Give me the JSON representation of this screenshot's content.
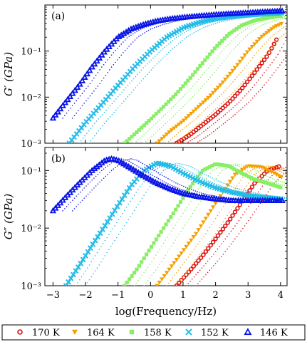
{
  "chart_data": [
    {
      "type": "scatter",
      "panel_label": "(a)",
      "ylabel": "G′ (GPa)",
      "xlabel": "",
      "xlim": [
        -3.25,
        4.2
      ],
      "ylim_log10": [
        -3,
        0
      ],
      "x_ticks": [
        -3,
        -2,
        -1,
        0,
        1,
        2,
        3,
        4
      ],
      "x_tick_labels_shown": false,
      "y_ticks": [
        {
          "exp": -3,
          "label": "10⁻³"
        },
        {
          "exp": -2,
          "label": "10⁻²"
        },
        {
          "exp": -1,
          "label": "10⁻¹"
        }
      ],
      "annotation": "",
      "series_note": "Each highlighted temperature has neighbouring unlabelled isotherms drawn with small dots in the same hue; values below are the highlighted (legend) isotherms.",
      "series": [
        {
          "name": "170 K",
          "color": "#dd1111",
          "marker": "circle",
          "x": [
            0.8,
            1.2,
            1.6,
            2.0,
            2.4,
            2.8,
            3.2,
            3.6,
            3.9
          ],
          "y": [
            0.001,
            0.0015,
            0.0025,
            0.0042,
            0.0075,
            0.015,
            0.034,
            0.08,
            0.19
          ]
        },
        {
          "name": "164 K",
          "color": "#f5a000",
          "marker": "triangle-down",
          "x": [
            0.2,
            0.6,
            1.0,
            1.4,
            1.8,
            2.2,
            2.6,
            3.0,
            3.4,
            3.8,
            4.05
          ],
          "y": [
            0.001,
            0.0018,
            0.003,
            0.0055,
            0.01,
            0.02,
            0.043,
            0.1,
            0.2,
            0.33,
            0.4
          ]
        },
        {
          "name": "158 K",
          "color": "#88ee66",
          "marker": "square",
          "x": [
            -0.8,
            -0.4,
            0.0,
            0.4,
            0.8,
            1.2,
            1.6,
            2.0,
            2.4,
            2.8,
            3.2,
            3.6,
            4.05
          ],
          "y": [
            0.001,
            0.0018,
            0.0033,
            0.0062,
            0.012,
            0.025,
            0.055,
            0.12,
            0.23,
            0.36,
            0.46,
            0.53,
            0.58
          ]
        },
        {
          "name": "152 K",
          "color": "#22bbe8",
          "marker": "x",
          "x": [
            -2.5,
            -2.0,
            -1.5,
            -1.0,
            -0.5,
            0.0,
            0.5,
            1.0,
            1.5,
            2.0,
            2.5,
            3.0,
            3.5,
            4.05
          ],
          "y": [
            0.001,
            0.0028,
            0.007,
            0.018,
            0.045,
            0.1,
            0.2,
            0.32,
            0.42,
            0.5,
            0.56,
            0.6,
            0.64,
            0.67
          ]
        },
        {
          "name": "146 K",
          "color": "#0a14e6",
          "marker": "triangle-up",
          "x": [
            -3.0,
            -2.6,
            -2.2,
            -1.8,
            -1.4,
            -1.0,
            -0.6,
            -0.2,
            0.2,
            0.6,
            1.0,
            1.5,
            2.0,
            2.5,
            3.0,
            3.5,
            4.05
          ],
          "y": [
            0.0035,
            0.008,
            0.018,
            0.045,
            0.1,
            0.2,
            0.3,
            0.38,
            0.45,
            0.5,
            0.54,
            0.58,
            0.62,
            0.65,
            0.68,
            0.71,
            0.74
          ]
        }
      ]
    },
    {
      "type": "scatter",
      "panel_label": "(b)",
      "ylabel": "G″ (GPa)",
      "xlabel": "log(Frequency/Hz)",
      "xlim": [
        -3.25,
        4.2
      ],
      "ylim_log10": [
        -3,
        -0.6
      ],
      "x_ticks": [
        -3,
        -2,
        -1,
        0,
        1,
        2,
        3,
        4
      ],
      "x_tick_labels_shown": true,
      "y_ticks": [
        {
          "exp": -3,
          "label": "10⁻³"
        },
        {
          "exp": -2,
          "label": "10⁻²"
        },
        {
          "exp": -1,
          "label": "10⁻¹"
        }
      ],
      "series": [
        {
          "name": "170 K",
          "color": "#dd1111",
          "marker": "circle",
          "x": [
            0.8,
            1.2,
            1.6,
            2.0,
            2.4,
            2.8,
            3.2,
            3.6,
            4.0
          ],
          "y": [
            0.001,
            0.0018,
            0.0033,
            0.0065,
            0.013,
            0.028,
            0.06,
            0.1,
            0.12
          ]
        },
        {
          "name": "164 K",
          "color": "#f5a000",
          "marker": "triangle-down",
          "x": [
            0.2,
            0.6,
            1.0,
            1.4,
            1.8,
            2.2,
            2.6,
            3.0,
            3.4,
            3.8,
            4.05
          ],
          "y": [
            0.001,
            0.002,
            0.004,
            0.008,
            0.018,
            0.04,
            0.085,
            0.12,
            0.115,
            0.09,
            0.075
          ]
        },
        {
          "name": "158 K",
          "color": "#88ee66",
          "marker": "square",
          "x": [
            -0.8,
            -0.4,
            0.0,
            0.4,
            0.8,
            1.2,
            1.6,
            2.0,
            2.4,
            2.8,
            3.2,
            3.6,
            4.05
          ],
          "y": [
            0.001,
            0.002,
            0.0045,
            0.01,
            0.022,
            0.05,
            0.1,
            0.13,
            0.12,
            0.09,
            0.07,
            0.06,
            0.05
          ]
        },
        {
          "name": "152 K",
          "color": "#22bbe8",
          "marker": "x",
          "x": [
            -2.6,
            -2.2,
            -1.8,
            -1.4,
            -1.0,
            -0.6,
            -0.2,
            0.2,
            0.6,
            1.0,
            1.5,
            2.0,
            2.5,
            3.0,
            3.5,
            4.05
          ],
          "y": [
            0.001,
            0.0022,
            0.005,
            0.011,
            0.025,
            0.055,
            0.1,
            0.135,
            0.12,
            0.09,
            0.065,
            0.05,
            0.042,
            0.037,
            0.034,
            0.032
          ]
        },
        {
          "name": "146 K",
          "color": "#0a14e6",
          "marker": "triangle-up",
          "x": [
            -3.0,
            -2.6,
            -2.2,
            -1.8,
            -1.4,
            -1.2,
            -1.0,
            -0.6,
            -0.2,
            0.2,
            0.6,
            1.0,
            1.5,
            2.0,
            2.5,
            3.0,
            3.5,
            4.05
          ],
          "y": [
            0.02,
            0.035,
            0.06,
            0.1,
            0.15,
            0.16,
            0.15,
            0.11,
            0.08,
            0.06,
            0.048,
            0.04,
            0.035,
            0.032,
            0.03,
            0.03,
            0.03,
            0.03
          ]
        }
      ]
    }
  ],
  "legend": [
    {
      "name": "170 K",
      "color": "#dd1111",
      "marker": "circle"
    },
    {
      "name": "164 K",
      "color": "#f5a000",
      "marker": "triangle-down"
    },
    {
      "name": "158 K",
      "color": "#88ee66",
      "marker": "square"
    },
    {
      "name": "152 K",
      "color": "#22bbe8",
      "marker": "x"
    },
    {
      "name": "146 K",
      "color": "#0a14e6",
      "marker": "triangle-up"
    }
  ]
}
